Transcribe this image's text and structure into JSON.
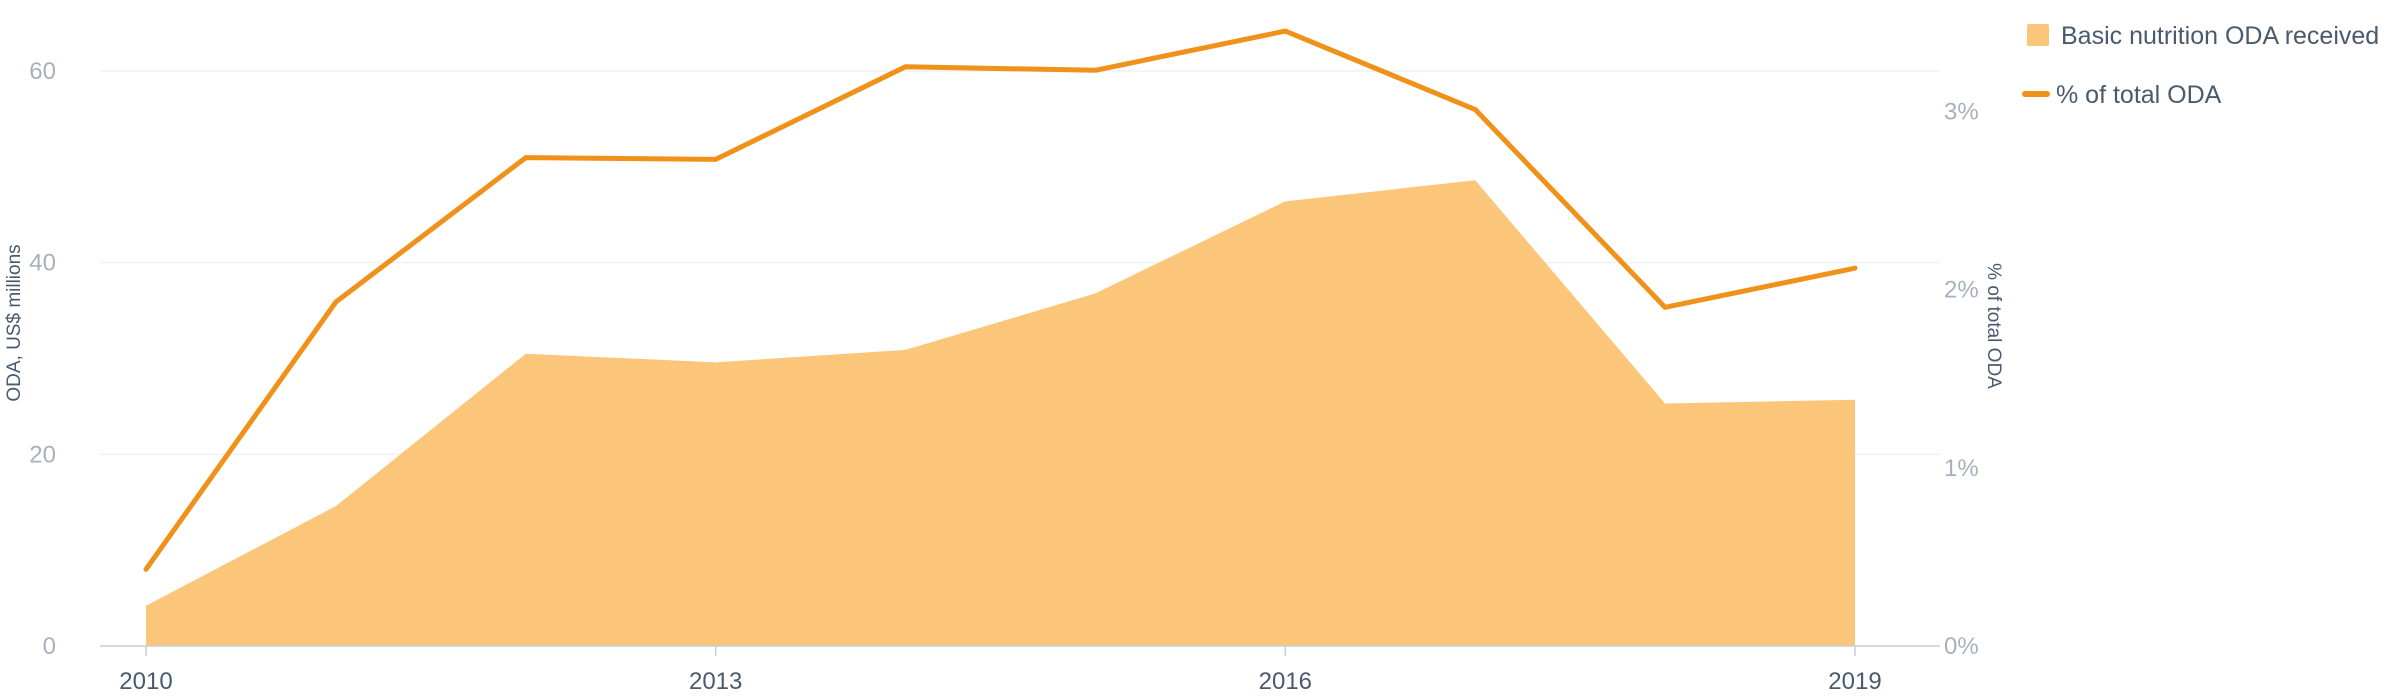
{
  "chart_data": {
    "type": "area",
    "x": [
      2010,
      2011,
      2012,
      2013,
      2014,
      2015,
      2016,
      2017,
      2018,
      2019
    ],
    "x_ticks": [
      "2010",
      "2013",
      "2016",
      "2019"
    ],
    "series": [
      {
        "name": "Basic nutrition ODA received",
        "type": "area",
        "axis": "left",
        "color": "#fbc67a",
        "values": [
          4.2,
          14.6,
          30.5,
          29.6,
          30.9,
          36.8,
          46.4,
          48.6,
          25.3,
          25.7
        ]
      },
      {
        "name": "% of total ODA",
        "type": "line",
        "axis": "right",
        "color": "#f0911a",
        "values": [
          0.43,
          1.93,
          2.74,
          2.73,
          3.25,
          3.23,
          3.45,
          3.01,
          1.9,
          2.12
        ]
      }
    ],
    "ylabel": "ODA, US$ millions",
    "ylim": [
      0,
      60
    ],
    "y_ticks": [
      "0",
      "20",
      "40",
      "60"
    ],
    "y2label": "% of total ODA",
    "y2lim": [
      0,
      3.4
    ],
    "y2_ticks": [
      "0%",
      "1%",
      "2%",
      "3%"
    ],
    "grid": true,
    "legend_position": "top-right"
  }
}
